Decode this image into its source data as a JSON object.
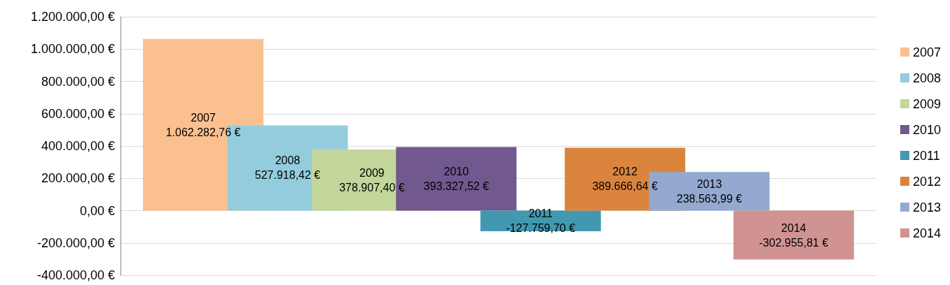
{
  "chart_data": {
    "type": "bar",
    "categories": [
      null
    ],
    "series": [
      {
        "name": "2007",
        "color": "#fac090",
        "values": [
          1062282.76
        ],
        "value_labels": [
          "1.062.282,76 €"
        ]
      },
      {
        "name": "2008",
        "color": "#93cddd",
        "values": [
          527918.42
        ],
        "value_labels": [
          "527.918,42 €"
        ]
      },
      {
        "name": "2009",
        "color": "#c3d69b",
        "values": [
          378907.4
        ],
        "value_labels": [
          "378.907,40 €"
        ]
      },
      {
        "name": "2010",
        "color": "#71588f",
        "values": [
          393327.52
        ],
        "value_labels": [
          "393.327,52 €"
        ]
      },
      {
        "name": "2011",
        "color": "#4198af",
        "values": [
          -127759.7
        ],
        "value_labels": [
          "-127.759,70 €"
        ]
      },
      {
        "name": "2012",
        "color": "#db843d",
        "values": [
          389666.64
        ],
        "value_labels": [
          "389.666,64 €"
        ]
      },
      {
        "name": "2013",
        "color": "#93a9cf",
        "values": [
          238563.99
        ],
        "value_labels": [
          "238.563,99 €"
        ]
      },
      {
        "name": "2014",
        "color": "#d19392",
        "values": [
          -302955.81
        ],
        "value_labels": [
          "-302.955,81 €"
        ]
      }
    ],
    "ylim": [
      -400000,
      1200000
    ],
    "yticks": [
      {
        "value": -400000,
        "label": "-400.000,00 €"
      },
      {
        "value": -200000,
        "label": "-200.000,00 €"
      },
      {
        "value": 0,
        "label": "0,00 €"
      },
      {
        "value": 200000,
        "label": "200.000,00 €"
      },
      {
        "value": 400000,
        "label": "400.000,00 €"
      },
      {
        "value": 600000,
        "label": "600.000,00 €"
      },
      {
        "value": 800000,
        "label": "800.000,00 €"
      },
      {
        "value": 1000000,
        "label": "1.000.000,00 €"
      },
      {
        "value": 1200000,
        "label": "1.200.000,00 €"
      }
    ],
    "grid": "y",
    "legend": "right"
  }
}
